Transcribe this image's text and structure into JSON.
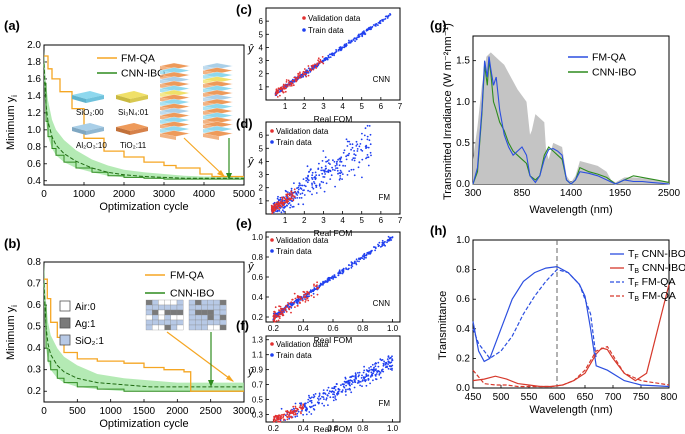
{
  "colors": {
    "fmqa": "#f5a623",
    "cnnibo": "#2e8b1e",
    "band": "#9be39b",
    "train": "#1f3ff0",
    "valid": "#e23030",
    "gray": "#c4c4c4",
    "dashed": "#666666",
    "tf": "#2c4fe0",
    "tb": "#d6392c"
  },
  "panels": {
    "a": {
      "label": "(a)",
      "xlabel": "Optimization cycle",
      "ylabel_main": "Minimum y",
      "ylabel_sub": "i",
      "legend": [
        "FM-QA",
        "CNN-IBO"
      ],
      "materials": [
        {
          "label": "SiO₂:00",
          "color": "#8ed8ee"
        },
        {
          "label": "Si₃N₄:01",
          "color": "#f0e068"
        },
        {
          "label": "Al₂O₃:10",
          "color": "#a9cfe8"
        },
        {
          "label": "TiO₂:11",
          "color": "#ee9a5a"
        }
      ],
      "xticks": [
        "0",
        "1000",
        "2000",
        "3000",
        "4000",
        "5000"
      ],
      "yticks": [
        "0.4",
        "0.6",
        "0.8",
        "1.0",
        "1.2",
        "1.4",
        "1.6",
        "1.8",
        "2.0"
      ]
    },
    "b": {
      "label": "(b)",
      "xlabel": "Optimization cycle",
      "ylabel_main": "Minimum y",
      "ylabel_sub": "i",
      "legend": [
        "FM-QA",
        "CNN-IBO"
      ],
      "materials": [
        {
          "label": "Air:0",
          "color": "#ffffff"
        },
        {
          "label": "Ag:1",
          "color": "#7a7a7a"
        },
        {
          "label": "SiO₂:1",
          "color": "#b7c9e6"
        }
      ],
      "xticks": [
        "0",
        "500",
        "1000",
        "1500",
        "2000",
        "2500",
        "3000"
      ],
      "yticks": [
        "0.2",
        "0.3",
        "0.4",
        "0.5",
        "0.6",
        "0.7",
        "0.8"
      ]
    },
    "c": {
      "label": "(c)",
      "model": "CNN",
      "xlabel": "Real FOM",
      "ylabel": "ŷ",
      "legend": [
        "Validation data",
        "Train data"
      ],
      "xticks": [
        "1",
        "2",
        "3",
        "4",
        "5",
        "6",
        "7"
      ],
      "yticks": [
        "1",
        "2",
        "3",
        "4",
        "5",
        "6"
      ]
    },
    "d": {
      "label": "(d)",
      "model": "FM",
      "xlabel": "Real FOM",
      "ylabel": "ŷ",
      "legend": [
        "Validation data",
        "Train data"
      ],
      "xticks": [
        "1",
        "2",
        "3",
        "4",
        "5",
        "6",
        "7"
      ],
      "yticks": [
        "1",
        "2",
        "3",
        "4",
        "5",
        "6"
      ]
    },
    "e": {
      "label": "(e)",
      "model": "CNN",
      "xlabel": "Real FOM",
      "ylabel": "ŷ",
      "legend": [
        "Validation data",
        "Train data"
      ],
      "xticks": [
        "0.2",
        "0.4",
        "0.6",
        "0.8",
        "1.0"
      ],
      "yticks": [
        "0.2",
        "0.4",
        "0.6",
        "0.8",
        "1.0"
      ]
    },
    "f": {
      "label": "(f)",
      "model": "FM",
      "xlabel": "Real FOM",
      "ylabel": "ŷ",
      "legend": [
        "Validation data",
        "Train data"
      ],
      "xticks": [
        "0.2",
        "0.4",
        "0.6",
        "0.8",
        "1.0"
      ],
      "yticks": [
        "0.3",
        "0.5",
        "0.7",
        "0.9",
        "1.1",
        "1.3"
      ]
    },
    "g": {
      "label": "(g)",
      "xlabel": "Wavelength (nm)",
      "ylabel": "Transmitted Irradiance (W m⁻²nm⁻¹)",
      "legend": [
        "FM-QA",
        "CNN-IBO"
      ],
      "xticks": [
        "300",
        "850",
        "1400",
        "1950",
        "2500"
      ],
      "yticks": [
        "0.0",
        "0.5",
        "1.0",
        "1.5"
      ]
    },
    "h": {
      "label": "(h)",
      "xlabel": "Wavelength (nm)",
      "ylabel": "Transmittance",
      "legend": [
        {
          "main": "T",
          "sub": "F",
          "rest": " CNN-IBO"
        },
        {
          "main": "T",
          "sub": "B",
          "rest": " CNN-IBO"
        },
        {
          "main": "T",
          "sub": "F",
          "rest": " FM-QA"
        },
        {
          "main": "T",
          "sub": "B",
          "rest": " FM-QA"
        }
      ],
      "xticks": [
        "450",
        "500",
        "550",
        "600",
        "650",
        "700",
        "750",
        "800"
      ],
      "yticks": [
        "0.0",
        "0.2",
        "0.4",
        "0.6",
        "0.8",
        "1.0"
      ]
    }
  },
  "chart_data": [
    {
      "type": "line",
      "id": "a",
      "xlim": [
        0,
        5000
      ],
      "ylim": [
        0.35,
        2.0
      ],
      "series": [
        {
          "name": "FM-QA",
          "x": [
            0,
            100,
            200,
            400,
            700,
            1000,
            1500,
            2000,
            2500,
            3000,
            3300,
            3900,
            4200,
            5000
          ],
          "y": [
            1.87,
            1.72,
            1.6,
            1.45,
            1.25,
            0.9,
            0.75,
            0.68,
            0.62,
            0.58,
            0.55,
            0.48,
            0.45,
            0.45
          ]
        },
        {
          "name": "CNN-IBO",
          "x": [
            0,
            50,
            100,
            200,
            300,
            500,
            800,
            1200,
            1600,
            2000,
            2500,
            3000,
            3500,
            4000,
            4500,
            5000
          ],
          "y": [
            1.78,
            1.3,
            1.1,
            0.92,
            0.82,
            0.72,
            0.63,
            0.55,
            0.5,
            0.47,
            0.45,
            0.44,
            0.43,
            0.43,
            0.43,
            0.43
          ],
          "band_low": [
            1.55,
            1.1,
            0.92,
            0.78,
            0.7,
            0.62,
            0.55,
            0.5,
            0.46,
            0.44,
            0.43,
            0.42,
            0.42,
            0.42,
            0.42,
            0.42
          ],
          "band_high": [
            1.95,
            1.55,
            1.35,
            1.12,
            1.0,
            0.88,
            0.76,
            0.65,
            0.58,
            0.53,
            0.5,
            0.48,
            0.46,
            0.45,
            0.45,
            0.45
          ]
        }
      ]
    },
    {
      "type": "line",
      "id": "b",
      "xlim": [
        0,
        3000
      ],
      "ylim": [
        0.15,
        0.8
      ],
      "series": [
        {
          "name": "FM-QA",
          "x": [
            0,
            50,
            100,
            200,
            300,
            500,
            800,
            1200,
            1500,
            1800,
            2100,
            2200,
            3000
          ],
          "y": [
            0.72,
            0.63,
            0.52,
            0.45,
            0.38,
            0.35,
            0.34,
            0.33,
            0.31,
            0.3,
            0.29,
            0.2,
            0.2
          ]
        },
        {
          "name": "CNN-IBO",
          "x": [
            0,
            30,
            60,
            100,
            200,
            300,
            500,
            800,
            1200,
            1600,
            2000,
            2500,
            3000
          ],
          "y": [
            0.7,
            0.5,
            0.42,
            0.37,
            0.32,
            0.29,
            0.26,
            0.24,
            0.23,
            0.22,
            0.22,
            0.22,
            0.22
          ],
          "band_low": [
            0.6,
            0.4,
            0.34,
            0.3,
            0.26,
            0.24,
            0.22,
            0.21,
            0.2,
            0.2,
            0.2,
            0.2,
            0.2
          ],
          "band_high": [
            0.8,
            0.62,
            0.52,
            0.46,
            0.4,
            0.36,
            0.32,
            0.28,
            0.26,
            0.25,
            0.24,
            0.24,
            0.24
          ]
        }
      ]
    },
    {
      "type": "scatter",
      "id": "c",
      "xlabel": "Real FOM",
      "xlim": [
        0,
        7
      ],
      "ylim": [
        0,
        7
      ],
      "series": [
        {
          "name": "Validation data",
          "region": {
            "x": [
              0.5,
              3.0
            ],
            "spread": 0.25
          }
        },
        {
          "name": "Train data",
          "region": {
            "x": [
              0.5,
              6.5
            ],
            "spread": 0.12
          }
        }
      ]
    },
    {
      "type": "scatter",
      "id": "d",
      "xlabel": "Real FOM",
      "xlim": [
        0,
        7
      ],
      "ylim": [
        0,
        7
      ],
      "series": [
        {
          "name": "Validation data",
          "region": {
            "x": [
              0.3,
              1.5
            ],
            "spread": 0.3
          }
        },
        {
          "name": "Train data",
          "region": {
            "x": [
              0.3,
              5.5
            ],
            "spread": 0.8
          }
        }
      ]
    },
    {
      "type": "scatter",
      "id": "e",
      "xlabel": "Real FOM",
      "xlim": [
        0.15,
        1.05
      ],
      "ylim": [
        0.15,
        1.05
      ],
      "series": [
        {
          "name": "Validation data",
          "region": {
            "x": [
              0.2,
              0.5
            ],
            "spread": 0.05
          }
        },
        {
          "name": "Train data",
          "region": {
            "x": [
              0.2,
              1.0
            ],
            "spread": 0.02
          }
        }
      ]
    },
    {
      "type": "scatter",
      "id": "f",
      "xlabel": "Real FOM",
      "xlim": [
        0.15,
        1.05
      ],
      "ylim": [
        0.2,
        1.35
      ],
      "series": [
        {
          "name": "Validation data",
          "region": {
            "x": [
              0.2,
              0.4
            ],
            "spread": 0.05
          }
        },
        {
          "name": "Train data",
          "region": {
            "x": [
              0.2,
              1.0
            ],
            "spread": 0.08
          }
        }
      ]
    },
    {
      "type": "line",
      "id": "g",
      "xlim": [
        300,
        2500
      ],
      "ylim": [
        0,
        1.8
      ],
      "series": [
        {
          "name": "Solar (gray)",
          "x": [
            300,
            350,
            400,
            450,
            500,
            550,
            600,
            650,
            700,
            750,
            800,
            900,
            940,
            960,
            1000,
            1100,
            1120,
            1150,
            1200,
            1300,
            1350,
            1400,
            1450,
            1500,
            1600,
            1700,
            1800,
            1850,
            1900,
            1950,
            2000,
            2100,
            2200,
            2300,
            2400,
            2500
          ],
          "y": [
            0.3,
            0.7,
            1.2,
            1.55,
            1.6,
            1.55,
            1.5,
            1.45,
            1.35,
            1.25,
            1.15,
            1.0,
            0.6,
            0.65,
            0.85,
            0.75,
            0.4,
            0.3,
            0.5,
            0.45,
            0.1,
            0.02,
            0.1,
            0.28,
            0.25,
            0.22,
            0.15,
            0.05,
            0.02,
            0.05,
            0.08,
            0.08,
            0.07,
            0.06,
            0.04,
            0.02
          ]
        },
        {
          "name": "FM-QA",
          "x": [
            300,
            350,
            400,
            430,
            460,
            480,
            500,
            530,
            560,
            600,
            650,
            700,
            750,
            800,
            850,
            900,
            940,
            1000,
            1050,
            1100,
            1150,
            1200,
            1250,
            1300,
            1350,
            1400,
            1450,
            1500,
            1600,
            1700,
            1800,
            1900,
            2000,
            2100,
            2200,
            2300,
            2400,
            2500
          ],
          "y": [
            0.0,
            0.2,
            0.9,
            1.5,
            1.3,
            1.55,
            1.4,
            1.2,
            1.3,
            0.9,
            0.6,
            0.45,
            0.35,
            0.4,
            0.45,
            0.35,
            0.1,
            0.02,
            0.1,
            0.3,
            0.42,
            0.43,
            0.4,
            0.35,
            0.05,
            0.0,
            0.05,
            0.15,
            0.13,
            0.1,
            0.05,
            0.0,
            0.05,
            0.03,
            0.03,
            0.02,
            0.01,
            0.0
          ]
        },
        {
          "name": "CNN-IBO",
          "x": [
            300,
            350,
            400,
            430,
            460,
            480,
            500,
            530,
            560,
            600,
            650,
            700,
            750,
            800,
            850,
            900,
            940,
            1000,
            1050,
            1100,
            1150,
            1200,
            1250,
            1300,
            1350,
            1400,
            1450,
            1500,
            1600,
            1700,
            1800,
            1900,
            2000,
            2100,
            2200,
            2300,
            2400,
            2500
          ],
          "y": [
            0.0,
            0.15,
            0.85,
            1.45,
            1.2,
            1.5,
            1.35,
            1.0,
            0.9,
            0.75,
            0.65,
            0.5,
            0.4,
            0.35,
            0.3,
            0.25,
            0.1,
            0.05,
            0.1,
            0.35,
            0.45,
            0.4,
            0.35,
            0.3,
            0.05,
            0.0,
            0.05,
            0.2,
            0.15,
            0.12,
            0.08,
            0.0,
            0.05,
            0.1,
            0.08,
            0.06,
            0.04,
            0.02
          ]
        }
      ]
    },
    {
      "type": "line",
      "id": "h",
      "xlim": [
        450,
        800
      ],
      "ylim": [
        0,
        1.0
      ],
      "vline": 600,
      "series": [
        {
          "name": "TF CNN-IBO",
          "x": [
            450,
            460,
            470,
            480,
            500,
            520,
            540,
            560,
            580,
            600,
            620,
            640,
            650,
            660,
            670,
            690,
            720,
            750,
            800
          ],
          "y": [
            0.45,
            0.25,
            0.18,
            0.2,
            0.4,
            0.6,
            0.72,
            0.78,
            0.81,
            0.82,
            0.78,
            0.7,
            0.62,
            0.4,
            0.15,
            0.12,
            0.05,
            0.02,
            0.01
          ]
        },
        {
          "name": "TB CNN-IBO",
          "x": [
            450,
            470,
            490,
            510,
            530,
            550,
            570,
            590,
            610,
            630,
            650,
            670,
            680,
            690,
            700,
            720,
            740,
            760,
            780,
            800
          ],
          "y": [
            0.05,
            0.06,
            0.08,
            0.06,
            0.03,
            0.02,
            0.01,
            0.01,
            0.02,
            0.05,
            0.1,
            0.23,
            0.27,
            0.26,
            0.2,
            0.1,
            0.05,
            0.1,
            0.4,
            0.7
          ]
        },
        {
          "name": "TF FM-QA",
          "x": [
            450,
            460,
            480,
            500,
            520,
            540,
            560,
            580,
            600,
            620,
            640,
            660,
            670
          ],
          "y": [
            0.4,
            0.3,
            0.2,
            0.25,
            0.35,
            0.5,
            0.62,
            0.72,
            0.8,
            0.78,
            0.7,
            0.5,
            0.2
          ]
        },
        {
          "name": "TB FM-QA",
          "x": [
            450,
            470,
            490,
            510,
            530,
            550,
            570,
            590,
            610,
            630,
            650,
            670,
            690,
            700,
            720,
            750,
            800
          ],
          "y": [
            0.12,
            0.03,
            0.02,
            0.02,
            0.01,
            0.01,
            0.01,
            0.01,
            0.02,
            0.05,
            0.12,
            0.25,
            0.28,
            0.22,
            0.1,
            0.05,
            0.02
          ]
        }
      ]
    }
  ]
}
